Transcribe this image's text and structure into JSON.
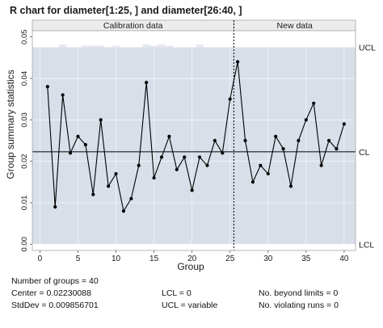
{
  "chart_data": {
    "type": "line",
    "title": "R chart for diameter[1:25, ] and diameter[26:40, ]",
    "xlabel": "Group",
    "ylabel": "Group summary statistics",
    "xlim": [
      -1,
      41.5
    ],
    "ylim": [
      -0.0015,
      0.0515
    ],
    "xticks": [
      0,
      5,
      10,
      15,
      20,
      25,
      30,
      35,
      40
    ],
    "xtick_labels": [
      "0",
      "5",
      "10",
      "15",
      "20",
      "25",
      "30",
      "35",
      "40"
    ],
    "yticks": [
      0.0,
      0.01,
      0.02,
      0.03,
      0.04,
      0.05
    ],
    "ytick_labels": [
      "0.00",
      "0.01",
      "0.02",
      "0.03",
      "0.04",
      "0.05"
    ],
    "sections": [
      {
        "label": "Calibration data",
        "from": 1,
        "to": 25
      },
      {
        "label": "New data",
        "from": 26,
        "to": 40
      }
    ],
    "split_at": 25.5,
    "center": 0.0223,
    "lcl": 0,
    "ucl": 0.0475,
    "ucl_steps": [
      {
        "x": 1,
        "v": 0.0475
      },
      {
        "x": 2,
        "v": 0.0475
      },
      {
        "x": 3,
        "v": 0.0482
      },
      {
        "x": 4,
        "v": 0.0475
      },
      {
        "x": 5,
        "v": 0.0475
      },
      {
        "x": 6,
        "v": 0.0479
      },
      {
        "x": 7,
        "v": 0.0479
      },
      {
        "x": 8,
        "v": 0.0479
      },
      {
        "x": 9,
        "v": 0.0475
      },
      {
        "x": 10,
        "v": 0.0479
      },
      {
        "x": 11,
        "v": 0.0475
      },
      {
        "x": 12,
        "v": 0.0475
      },
      {
        "x": 13,
        "v": 0.0475
      },
      {
        "x": 14,
        "v": 0.0482
      },
      {
        "x": 15,
        "v": 0.0479
      },
      {
        "x": 16,
        "v": 0.0482
      },
      {
        "x": 17,
        "v": 0.0479
      },
      {
        "x": 18,
        "v": 0.0475
      },
      {
        "x": 19,
        "v": 0.0475
      },
      {
        "x": 20,
        "v": 0.0475
      },
      {
        "x": 21,
        "v": 0.0482
      },
      {
        "x": 22,
        "v": 0.0475
      },
      {
        "x": 23,
        "v": 0.0475
      },
      {
        "x": 24,
        "v": 0.0475
      },
      {
        "x": 25,
        "v": 0.0475
      }
    ],
    "limit_labels": {
      "ucl": "UCL",
      "cl": "CL",
      "lcl": "LCL"
    },
    "series": [
      {
        "x": [
          1,
          2,
          3,
          4,
          5,
          6,
          7,
          8,
          9,
          10,
          11,
          12,
          13,
          14,
          15,
          16,
          17,
          18,
          19,
          20,
          21,
          22,
          23,
          24,
          25,
          26,
          27,
          28,
          29,
          30,
          31,
          32,
          33,
          34,
          35,
          36,
          37,
          38,
          39,
          40
        ],
        "values": [
          0.038,
          0.009,
          0.036,
          0.022,
          0.026,
          0.024,
          0.012,
          0.03,
          0.014,
          0.017,
          0.008,
          0.011,
          0.019,
          0.039,
          0.016,
          0.021,
          0.026,
          0.018,
          0.021,
          0.013,
          0.021,
          0.019,
          0.025,
          0.022,
          0.035,
          0.044,
          0.025,
          0.015,
          0.019,
          0.017,
          0.026,
          0.023,
          0.014,
          0.025,
          0.03,
          0.034,
          0.019,
          0.025,
          0.023,
          0.029
        ]
      }
    ],
    "grid": true,
    "colors": {
      "band": "#d8dfe9",
      "ucl_step": "#e6e9ef",
      "line": "#000000",
      "frame": "#a6a6a6"
    }
  },
  "stats": {
    "groups": "Number of groups = 40",
    "center": "Center = 0.02230088",
    "stddev": "StdDev = 0.009856701",
    "lcl": "LCL = 0",
    "ucl": "UCL = variable",
    "beyond": "No. beyond limits = 0",
    "violating": "No. violating runs = 0"
  }
}
